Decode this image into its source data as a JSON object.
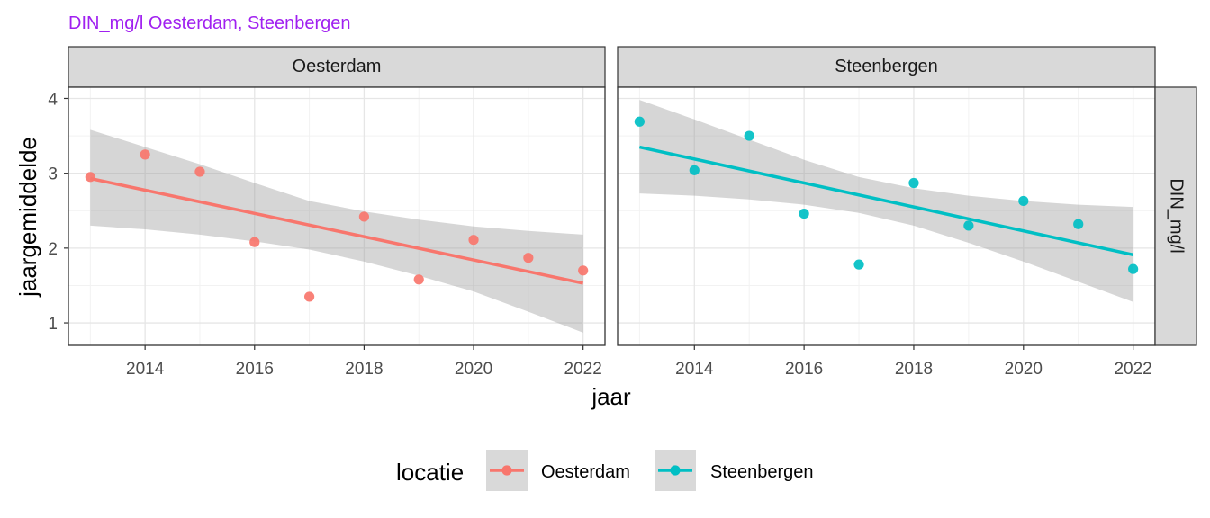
{
  "chart_data": {
    "type": "scatter",
    "title": "DIN_mg/l Oesterdam, Steenbergen",
    "title_color": "#a020f0",
    "xlabel": "jaar",
    "ylabel": "jaargemiddelde",
    "row_strip": "DIN_mg/l",
    "xlim": [
      2012.6,
      2022.4
    ],
    "ylim": [
      0.7,
      4.15
    ],
    "x_ticks": [
      2014,
      2016,
      2018,
      2020,
      2022
    ],
    "y_ticks": [
      1,
      2,
      3,
      4
    ],
    "legend": {
      "title": "locatie",
      "position": "bottom"
    },
    "series": [
      {
        "name": "Oesterdam",
        "color": "#f8766d",
        "x": [
          2013,
          2014,
          2015,
          2016,
          2017,
          2018,
          2019,
          2020,
          2021,
          2022
        ],
        "y": [
          2.95,
          3.25,
          3.02,
          2.08,
          1.35,
          2.42,
          1.58,
          2.11,
          1.87,
          1.7
        ],
        "fit": {
          "x": [
            2013,
            2022
          ],
          "y": [
            2.93,
            1.53
          ]
        },
        "ci": {
          "x": [
            2013,
            2014,
            2015,
            2016,
            2017,
            2018,
            2019,
            2020,
            2021,
            2022
          ],
          "lower": [
            2.3,
            2.25,
            2.18,
            2.09,
            1.98,
            1.82,
            1.63,
            1.42,
            1.15,
            0.87
          ],
          "upper": [
            3.58,
            3.35,
            3.12,
            2.87,
            2.63,
            2.49,
            2.38,
            2.29,
            2.23,
            2.18
          ]
        }
      },
      {
        "name": "Steenbergen",
        "color": "#00bfc4",
        "x": [
          2013,
          2014,
          2015,
          2016,
          2017,
          2018,
          2019,
          2020,
          2021,
          2022
        ],
        "y": [
          3.69,
          3.04,
          3.5,
          2.46,
          1.78,
          2.87,
          2.3,
          2.63,
          2.32,
          1.72
        ],
        "fit": {
          "x": [
            2013,
            2022
          ],
          "y": [
            3.35,
            1.91
          ]
        },
        "ci": {
          "x": [
            2013,
            2014,
            2015,
            2016,
            2017,
            2018,
            2019,
            2020,
            2021,
            2022
          ],
          "lower": [
            2.73,
            2.7,
            2.65,
            2.58,
            2.47,
            2.3,
            2.07,
            1.82,
            1.55,
            1.28
          ],
          "upper": [
            3.98,
            3.72,
            3.45,
            3.18,
            2.95,
            2.8,
            2.7,
            2.63,
            2.58,
            2.55
          ]
        }
      }
    ]
  }
}
